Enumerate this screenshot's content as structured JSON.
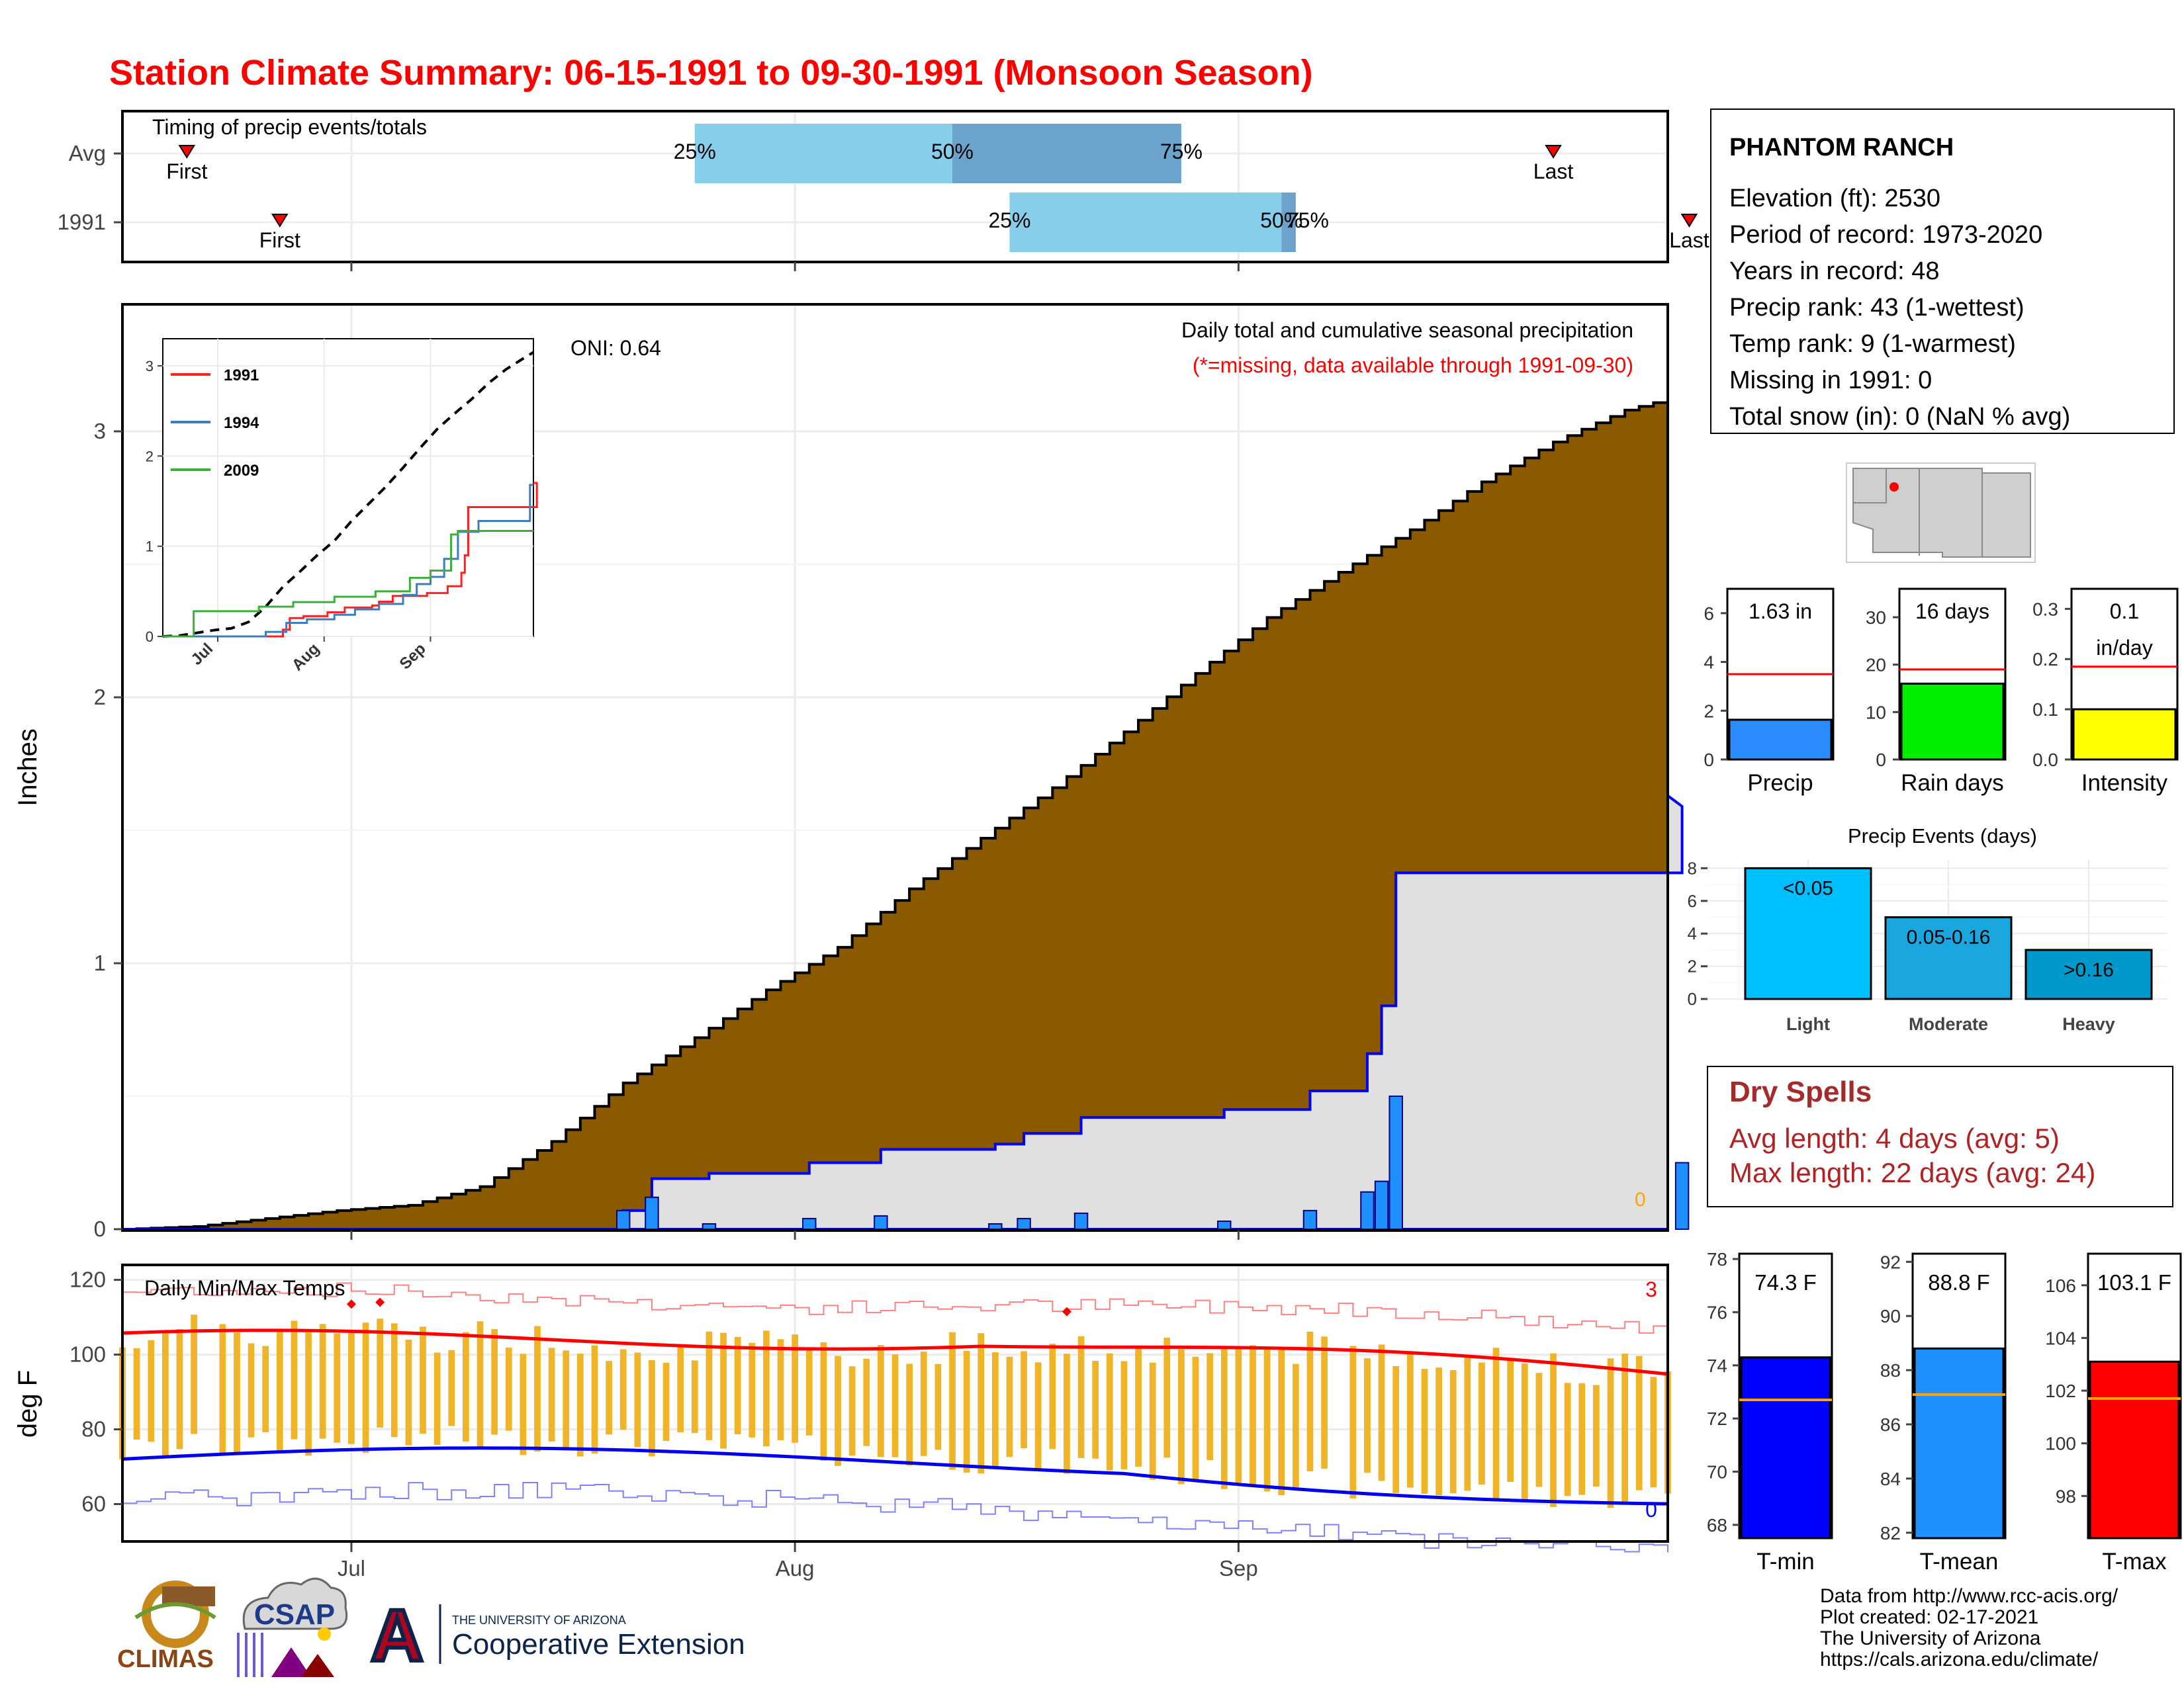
{
  "title": "Station Climate Summary: 06-15-1991 to 09-30-1991 (Monsoon Season)",
  "colors": {
    "title": "#ff0000",
    "brown": "#8b5a00",
    "blue": "#0000ff",
    "light_blue": "#87ceeb",
    "mid_blue": "#6ba3cc",
    "tmax": "#ff0000",
    "tmin": "#0000ff"
  },
  "months": [
    "Jul",
    "Aug",
    "Sep"
  ],
  "timing": {
    "title": "Timing of precip events/totals",
    "rows": [
      {
        "label": "Avg",
        "first_day": 4.5,
        "last_day": 100,
        "p25_day": 40,
        "p50_day": 58,
        "p75_day": 74,
        "first_label": "First",
        "last_label": "Last",
        "p25_label": "25%",
        "p50_label": "50%",
        "p75_label": "75%"
      },
      {
        "label": "1991",
        "first_day": 11,
        "last_day": 109.5,
        "p25_day": 62,
        "p50_day": 81,
        "p75_day": 82,
        "first_label": "First",
        "last_label": "Last",
        "p25_label": "25%",
        "p50_label": "50%",
        "p75_label": "75%"
      }
    ]
  },
  "main": {
    "ylabel": "Inches",
    "y_ticks": [
      "0",
      "1",
      "2",
      "3"
    ],
    "oni": "ONI: 0.64",
    "subtitle": "Daily total and cumulative seasonal precipitation",
    "note": "(*=missing, data available through 1991-09-30)",
    "zero_label": "0"
  },
  "chart_data": {
    "type": "area",
    "x_start": "1991-06-15",
    "x_end": "1991-09-30",
    "ylim": [
      0,
      3.5
    ],
    "avg_cum_knots": [
      [
        0,
        0
      ],
      [
        5,
        0.01
      ],
      [
        10,
        0.04
      ],
      [
        15,
        0.07
      ],
      [
        20,
        0.09
      ],
      [
        25,
        0.16
      ],
      [
        30,
        0.33
      ],
      [
        35,
        0.55
      ],
      [
        40,
        0.72
      ],
      [
        45,
        0.9
      ],
      [
        50,
        1.06
      ],
      [
        55,
        1.28
      ],
      [
        60,
        1.47
      ],
      [
        65,
        1.66
      ],
      [
        70,
        1.87
      ],
      [
        75,
        2.09
      ],
      [
        80,
        2.3
      ],
      [
        85,
        2.47
      ],
      [
        90,
        2.63
      ],
      [
        95,
        2.81
      ],
      [
        100,
        2.96
      ],
      [
        105,
        3.08
      ],
      [
        110,
        3.15
      ]
    ],
    "daily_1991": [
      [
        35,
        0.07
      ],
      [
        37,
        0.12
      ],
      [
        41,
        0.02
      ],
      [
        48,
        0.04
      ],
      [
        53,
        0.05
      ],
      [
        61,
        0.02
      ],
      [
        63,
        0.04
      ],
      [
        67,
        0.06
      ],
      [
        77,
        0.03
      ],
      [
        83,
        0.07
      ],
      [
        87,
        0.14
      ],
      [
        88,
        0.18
      ],
      [
        89,
        0.5
      ],
      [
        109,
        0.25
      ]
    ],
    "cum_1991_final": 1.63
  },
  "inset": {
    "y_ticks": [
      "0",
      "1",
      "2",
      "3"
    ],
    "legend": [
      {
        "name": "1991",
        "color": "#ff2020"
      },
      {
        "name": "1994",
        "color": "#3a7ebf"
      },
      {
        "name": "2009",
        "color": "#3ab03a"
      }
    ]
  },
  "temps": {
    "ylabel": "deg F",
    "title": "Daily Min/Max Temps",
    "y_ticks": [
      "60",
      "80",
      "100",
      "120"
    ],
    "ylim": [
      50,
      124
    ],
    "record_high_count": "3",
    "record_low_count": "0"
  },
  "station": {
    "name": "PHANTOM RANCH",
    "lines": [
      "Elevation (ft): 2530",
      "Period of record: 1973-2020",
      "Years in record: 48",
      "Precip rank: 43 (1-wettest)",
      "Temp rank: 9 (1-warmest)",
      "Missing in 1991: 0",
      "Total snow (in): 0 (NaN % avg)"
    ]
  },
  "summary_bars": [
    {
      "label": "Precip",
      "value_text": "1.63 in",
      "value": 1.63,
      "avg": 3.5,
      "ylim": [
        0,
        7
      ],
      "ticks": [
        "0",
        "2",
        "4",
        "6"
      ],
      "tick_vals": [
        0,
        2,
        4,
        6
      ],
      "color": "#2b8cff"
    },
    {
      "label": "Rain days",
      "value_text": "16 days",
      "value": 16,
      "avg": 19,
      "ylim": [
        0,
        36
      ],
      "ticks": [
        "0",
        "10",
        "20",
        "30"
      ],
      "tick_vals": [
        0,
        10,
        20,
        30
      ],
      "color": "#00ee00"
    },
    {
      "label": "Intensity",
      "value_text": "0.1\nin/day",
      "value": 0.1,
      "avg": 0.185,
      "ylim": [
        0,
        0.34
      ],
      "ticks": [
        "0.0",
        "0.1",
        "0.2",
        "0.3"
      ],
      "tick_vals": [
        0,
        0.1,
        0.2,
        0.3
      ],
      "color": "#ffff00"
    }
  ],
  "events": {
    "title": "Precip Events (days)",
    "ticks": [
      "0",
      "2",
      "4",
      "6",
      "8"
    ],
    "bars": [
      {
        "cat": "Light",
        "range": "<0.05",
        "value": 8,
        "color": "#00bfff"
      },
      {
        "cat": "Moderate",
        "range": "0.05-0.16",
        "value": 5,
        "color": "#1aa7e0"
      },
      {
        "cat": "Heavy",
        "range": ">0.16",
        "value": 3,
        "color": "#0099cc"
      }
    ]
  },
  "dry_spells": {
    "title": "Dry Spells",
    "avg": "Avg length: 4 days (avg: 5)",
    "max": "Max length: 22 days (avg: 24)"
  },
  "temp_bars": [
    {
      "label": "T-min",
      "value_text": "74.3 F",
      "value": 74.3,
      "avg": 72.7,
      "ylim": [
        67.5,
        78.2
      ],
      "ticks": [
        "68",
        "70",
        "72",
        "74",
        "76",
        "78"
      ],
      "tick_vals": [
        68,
        70,
        72,
        74,
        76,
        78
      ],
      "color": "#0000ff"
    },
    {
      "label": "T-mean",
      "value_text": "88.8 F",
      "value": 88.8,
      "avg": 87.1,
      "ylim": [
        81.8,
        92.3
      ],
      "ticks": [
        "82",
        "84",
        "86",
        "88",
        "90",
        "92"
      ],
      "tick_vals": [
        82,
        84,
        86,
        88,
        90,
        92
      ],
      "color": "#1e90ff"
    },
    {
      "label": "T-max",
      "value_text": "103.1 F",
      "value": 103.1,
      "avg": 101.7,
      "ylim": [
        96.4,
        107.2
      ],
      "ticks": [
        "98",
        "100",
        "102",
        "104",
        "106"
      ],
      "tick_vals": [
        98,
        100,
        102,
        104,
        106
      ],
      "color": "#ff0000"
    }
  ],
  "footer": {
    "credit": [
      "Data from http://www.rcc-acis.org/",
      "Plot created: 02-17-2021",
      "The University of Arizona",
      "https://cals.arizona.edu/climate/"
    ],
    "logo_climas": "CLIMAS",
    "logo_csap": "CSAP",
    "logo_a": "A",
    "ua_small": "THE UNIVERSITY OF ARIZONA",
    "ua_big": "Cooperative Extension"
  }
}
